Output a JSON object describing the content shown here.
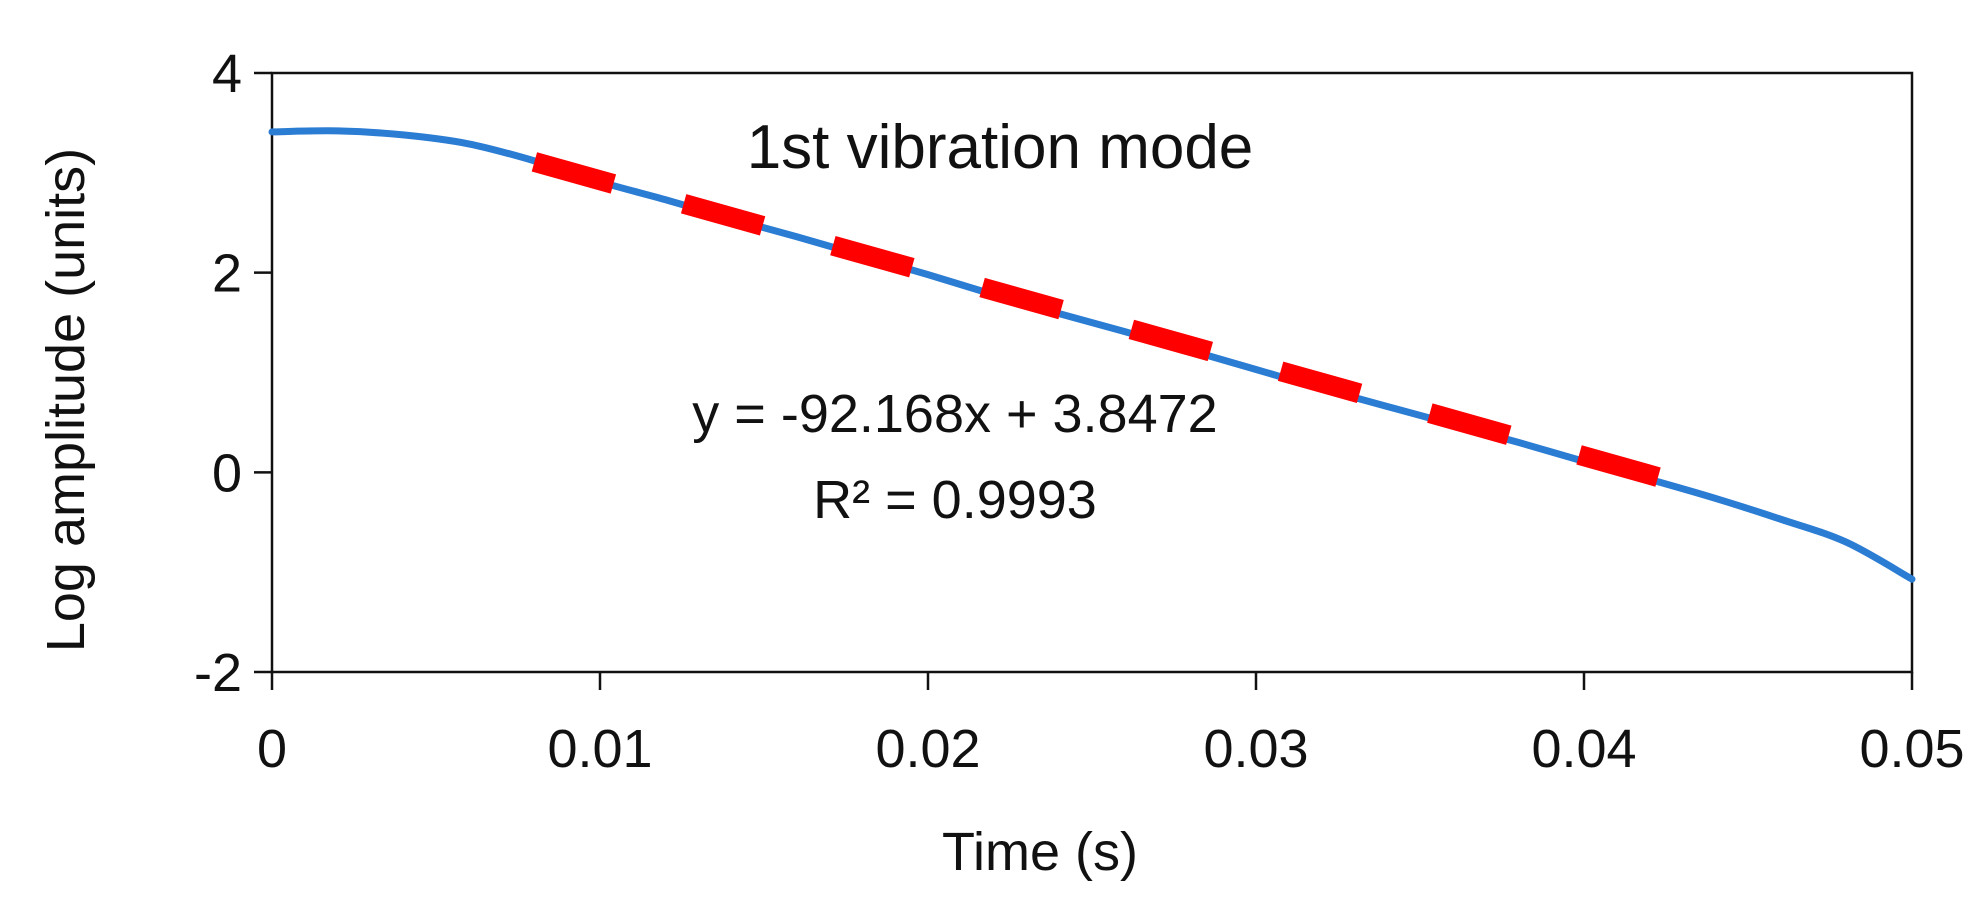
{
  "chart_data": {
    "type": "line",
    "title": "1st vibration mode",
    "xlabel": "Time (s)",
    "ylabel": "Log amplitude (units)",
    "xlim": [
      0,
      0.05
    ],
    "ylim": [
      -2,
      4
    ],
    "x_ticks": [
      0,
      0.01,
      0.02,
      0.03,
      0.04,
      0.05
    ],
    "x_tick_labels": [
      "0",
      "0.01",
      "0.02",
      "0.03",
      "0.04",
      "0.05"
    ],
    "y_ticks": [
      -2,
      0,
      2,
      4
    ],
    "y_tick_labels": [
      "-2",
      "0",
      "2",
      "4"
    ],
    "grid": false,
    "series": [
      {
        "name": "Log amplitude",
        "style": "solid",
        "color": "#2B7CD3",
        "x": [
          0,
          0.002,
          0.004,
          0.006,
          0.008,
          0.01,
          0.012,
          0.014,
          0.016,
          0.018,
          0.02,
          0.022,
          0.024,
          0.026,
          0.028,
          0.03,
          0.032,
          0.034,
          0.036,
          0.038,
          0.04,
          0.042,
          0.044,
          0.046,
          0.048,
          0.05
        ],
        "y": [
          3.41,
          3.42,
          3.38,
          3.29,
          3.12,
          2.91,
          2.73,
          2.54,
          2.36,
          2.17,
          1.98,
          1.78,
          1.59,
          1.41,
          1.22,
          1.03,
          0.84,
          0.66,
          0.48,
          0.3,
          0.11,
          -0.07,
          -0.26,
          -0.47,
          -0.7,
          -1.07
        ]
      },
      {
        "name": "Linear fit",
        "style": "dashed",
        "color": "#FF0000",
        "slope": -92.168,
        "intercept": 3.8472,
        "x_range": [
          0.008,
          0.0425
        ]
      }
    ],
    "annotations": {
      "equation": "y = -92.168x + 3.8472",
      "r_squared": "R² = 0.9993"
    }
  }
}
